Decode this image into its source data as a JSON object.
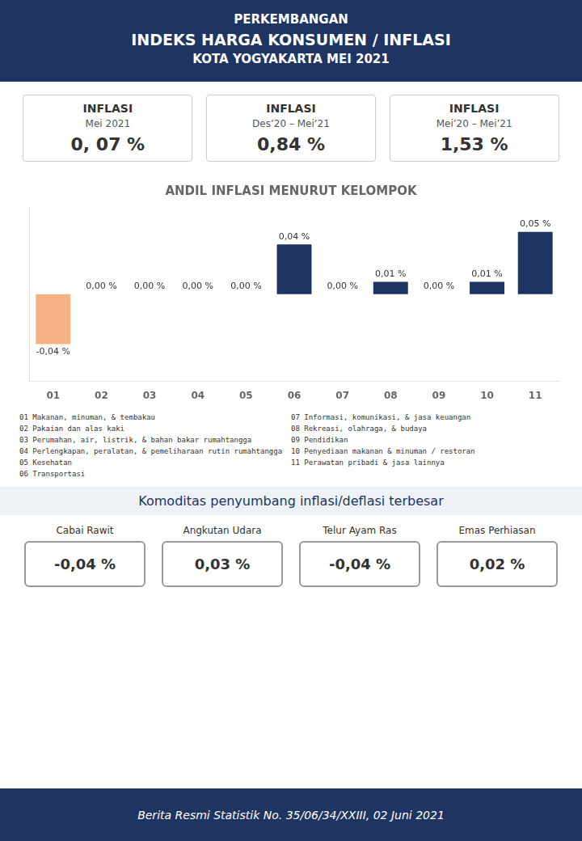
{
  "chart_data": {
    "type": "bar",
    "title": "ANDIL INFLASI MENURUT KELOMPOK",
    "subtitle": [
      "PERKEMBANGAN",
      "INDEKS HARGA KONSUMEN / INFLASI",
      "KOTA YOGYAKARTA MEI 2021"
    ],
    "categories": [
      "01",
      "02",
      "03",
      "04",
      "05",
      "06",
      "07",
      "08",
      "09",
      "10",
      "11"
    ],
    "values": [
      -0.04,
      0.0,
      0.0,
      0.0,
      0.0,
      0.04,
      0.0,
      0.01,
      0.0,
      0.01,
      0.05
    ],
    "value_labels": [
      "-0,04 %",
      "0,00 %",
      "0,00 %",
      "0,00 %",
      "0,00 %",
      "0,04 %",
      "0,00 %",
      "0,01 %",
      "0,00 %",
      "0,01 %",
      "0,05 %"
    ],
    "data_labels": true,
    "colors": [
      "#f4b183",
      "#1e3462",
      "#1e3462",
      "#1e3462",
      "#1e3462",
      "#1e3462",
      "#1e3462",
      "#1e3462",
      "#1e3462",
      "#1e3462",
      "#1e3462"
    ],
    "ylim": [
      -0.07,
      0.07
    ],
    "tick_labels": "x",
    "grid": false,
    "annotations": [
      [
        "INFLASI",
        "Mei 2021",
        "0, 07 %"
      ],
      [
        "INFLASI",
        "Des’20 – Mei’21",
        "0,84 %"
      ],
      [
        "INFLASI",
        "Mei’20 – Mei’21",
        "1,53 %"
      ],
      [
        "01  Makanan, minuman, & tembakau",
        "02  Pakaian dan alas kaki",
        "03  Perumahan, air, listrik, & bahan bakar rumahtangga",
        "04  Perlengkapan, peralatan, & pemeliharaan rutin rumahtangga",
        "05  Kesehatan",
        "06  Transportasi"
      ],
      [
        "07  Informasi, komunikasi, & jasa keuangan",
        "08  Rekreasi, olahraga, & budaya",
        "09  Pendidikan",
        "10  Penyediaan makanan & minuman / restoran",
        "11  Perawatan pribadi & jasa lainnya"
      ],
      [
        "Komoditas penyumbang inflasi/deflasi terbesar"
      ],
      [
        "Cabai Rawit",
        "-0,04 %"
      ],
      [
        "Angkutan Udara",
        "0,03 %"
      ],
      [
        "Telur Ayam Ras",
        "-0,04 %"
      ],
      [
        "Emas Perhiasan",
        "0,02 %"
      ],
      [
        "Berita Resmi Statistik No. 35/06/34/XXIII, 02 Juni 2021"
      ]
    ]
  }
}
